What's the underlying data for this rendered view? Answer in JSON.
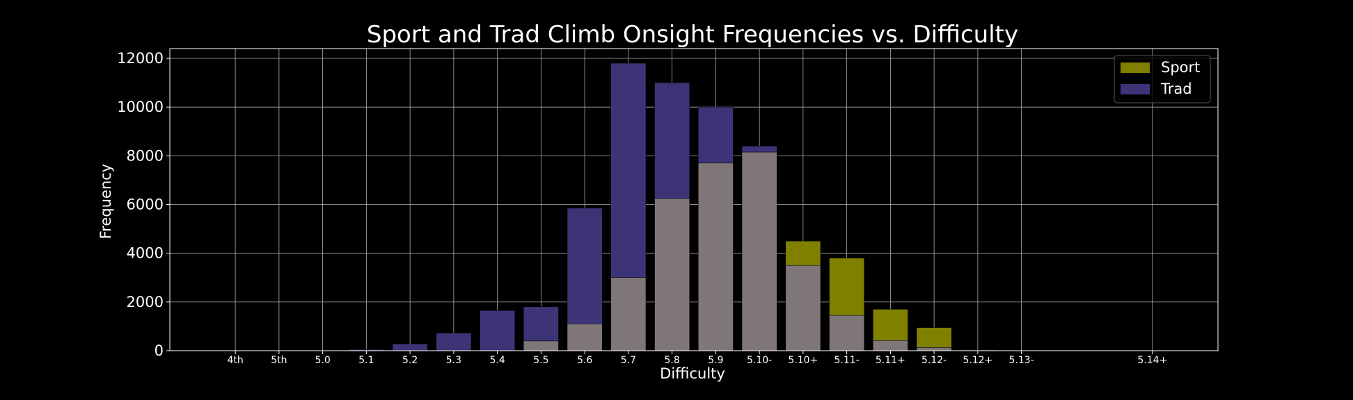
{
  "chart_data": {
    "type": "bar",
    "title": "Sport and Trad Climb Onsight Frequencies vs. Difficulty",
    "xlabel": "Difficulty",
    "ylabel": "Frequency",
    "ylim": [
      0,
      12400
    ],
    "yticks": [
      0,
      2000,
      4000,
      6000,
      8000,
      10000,
      12000
    ],
    "grid": true,
    "legend_position": "top-right",
    "categories": [
      "4th",
      "5th",
      "5.0",
      "5.1",
      "5.2",
      "5.3",
      "5.4",
      "5.5",
      "5.6",
      "5.7",
      "5.8",
      "5.9",
      "5.10-",
      "5.10+",
      "5.11-",
      "5.11+",
      "5.12-",
      "5.12+",
      "5.13-",
      "5.14+"
    ],
    "x_slots": [
      0,
      1,
      2,
      3,
      4,
      5,
      6,
      7,
      8,
      9,
      10,
      11,
      12,
      13,
      14,
      15,
      16,
      17,
      18,
      21
    ],
    "series": [
      {
        "name": "Sport",
        "color": "#808000",
        "values": [
          0,
          0,
          0,
          0,
          0,
          0,
          0,
          400,
          1100,
          3000,
          6250,
          7700,
          8150,
          4500,
          3800,
          1700,
          950,
          0,
          0,
          0
        ]
      },
      {
        "name": "Trad",
        "color": "#3d3478",
        "values": [
          0,
          0,
          20,
          50,
          280,
          720,
          1650,
          1800,
          5850,
          11800,
          11000,
          10000,
          8400,
          3500,
          1450,
          420,
          130,
          30,
          0,
          0
        ]
      }
    ],
    "overlap_color": "#7f7777"
  }
}
